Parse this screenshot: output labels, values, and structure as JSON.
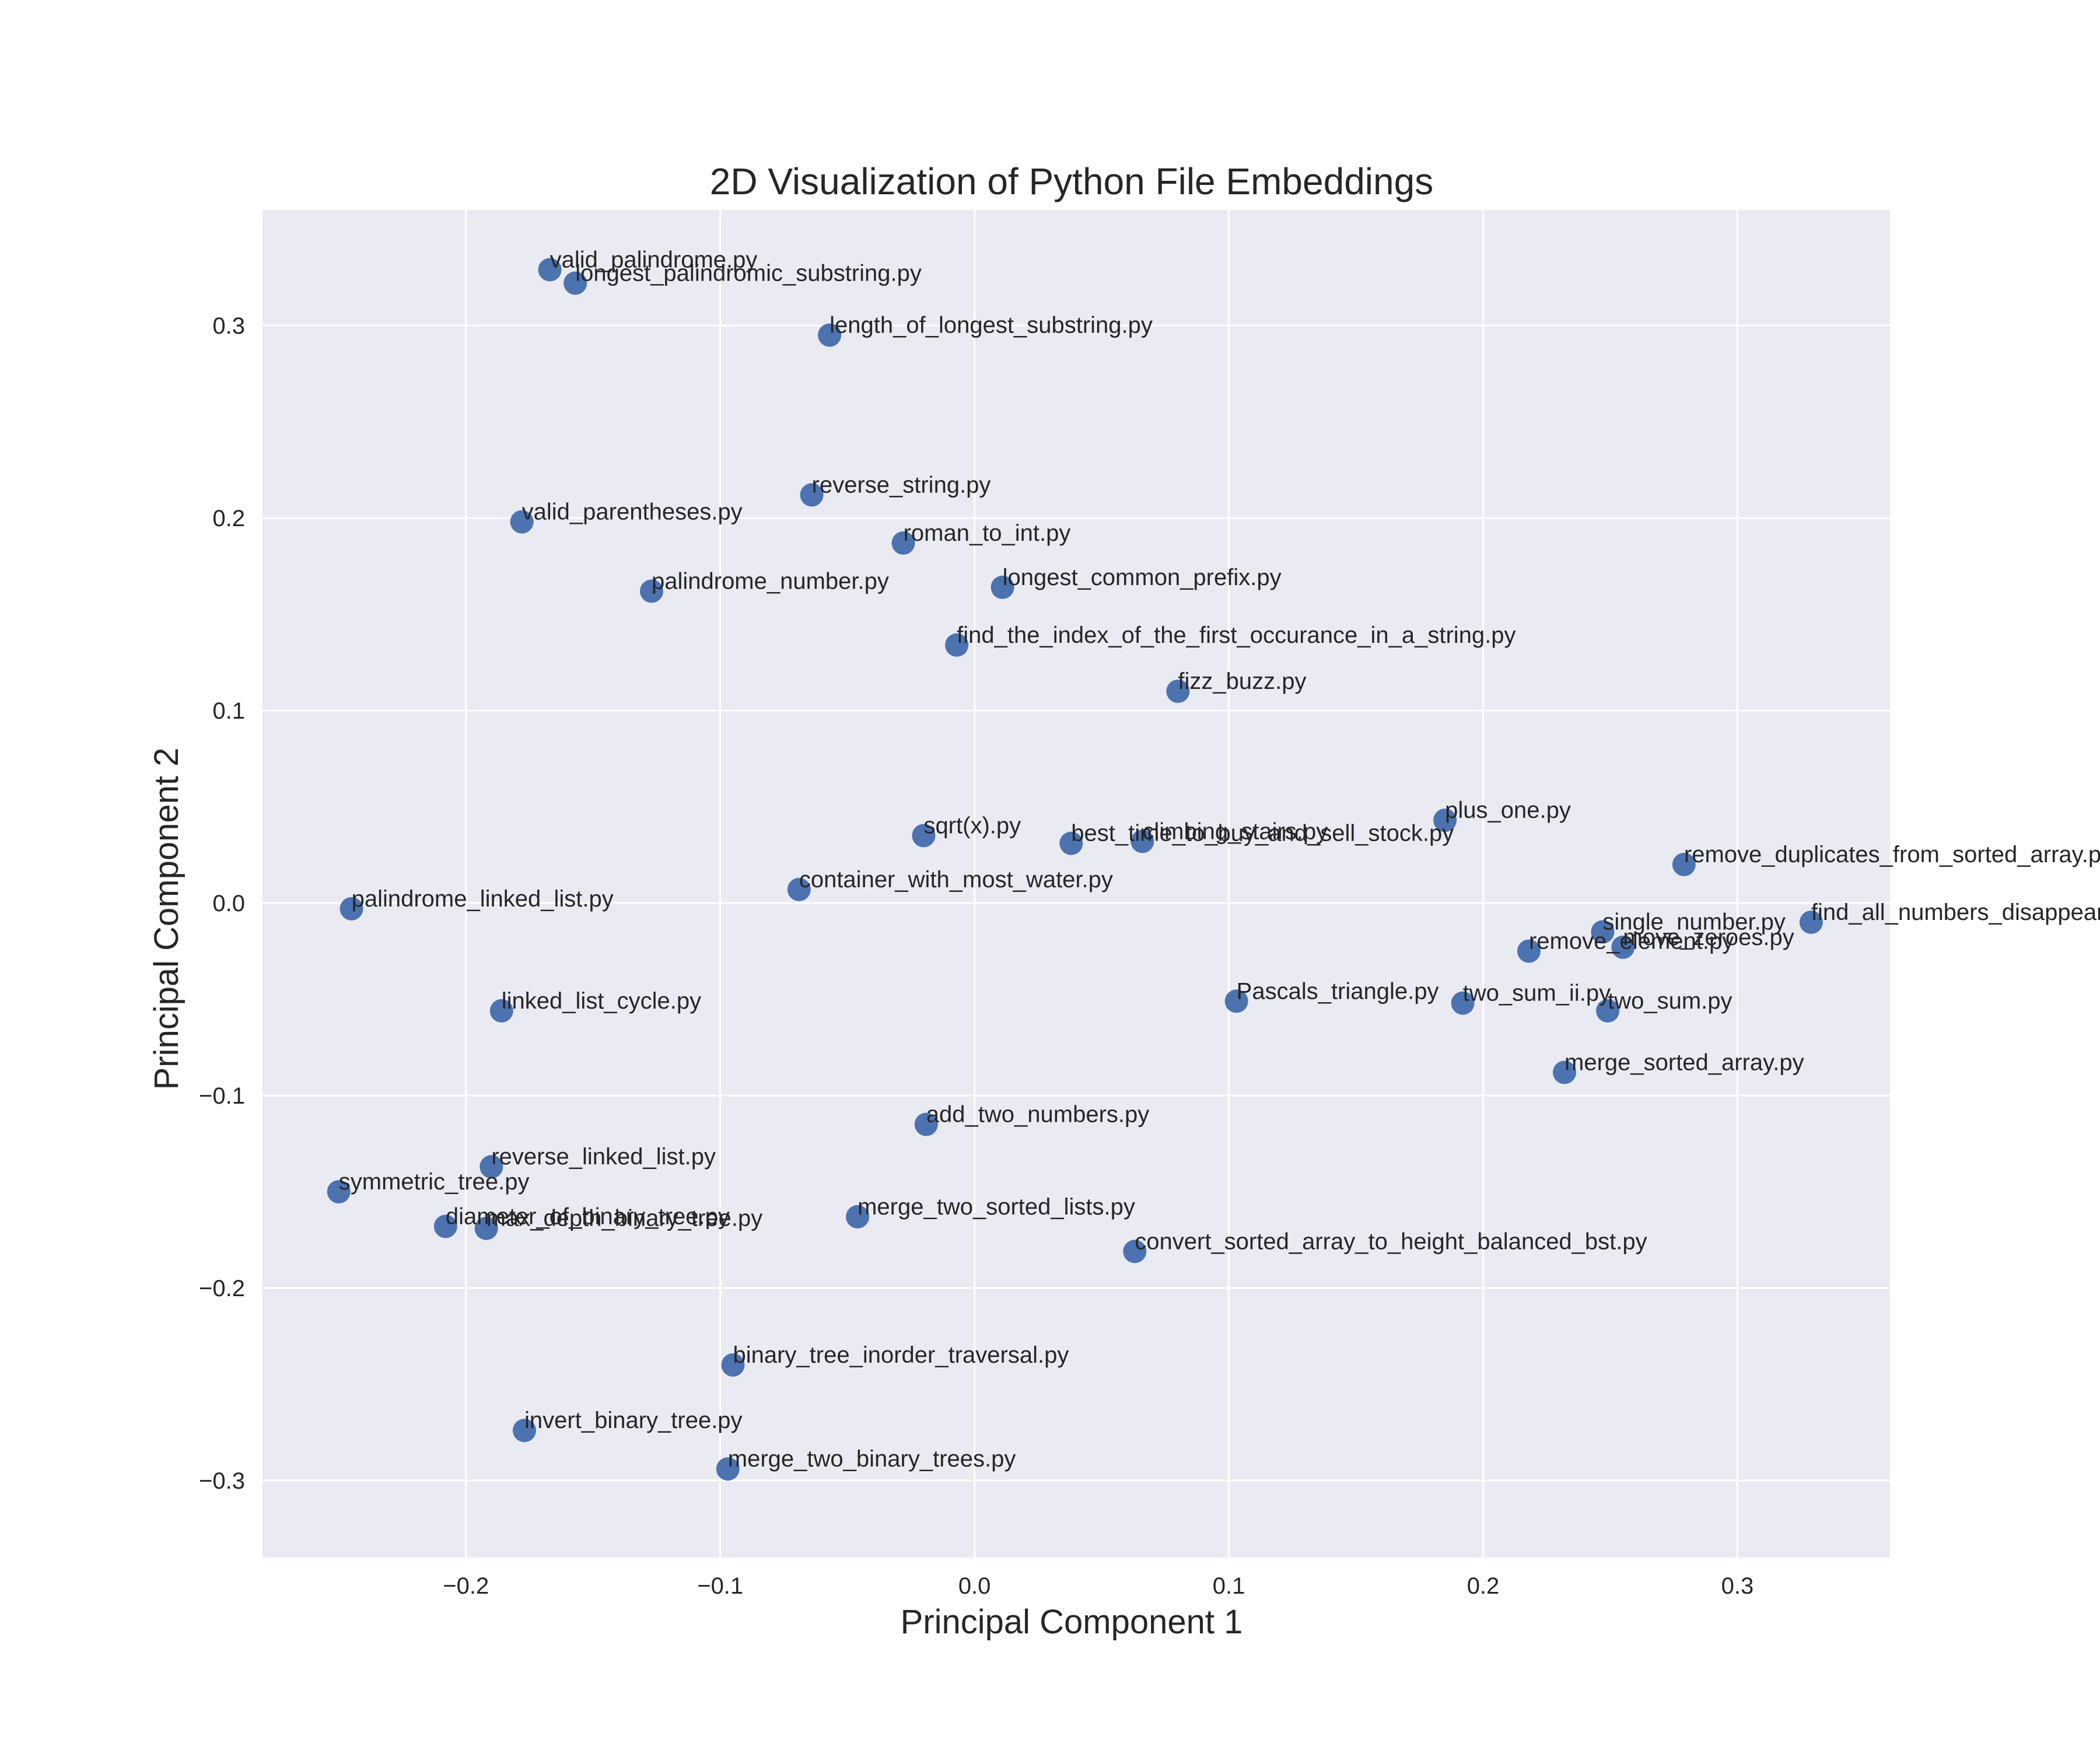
{
  "chart_data": {
    "type": "scatter",
    "title": "2D Visualization of Python File Embeddings",
    "xlabel": "Principal Component 1",
    "ylabel": "Principal Component 2",
    "xlim": [
      -0.28,
      0.36
    ],
    "ylim": [
      -0.34,
      0.36
    ],
    "xticks": [
      -0.2,
      -0.1,
      0.0,
      0.1,
      0.2,
      0.3
    ],
    "xtick_labels": [
      "−0.2",
      "−0.1",
      "0.0",
      "0.1",
      "0.2",
      "0.3"
    ],
    "yticks": [
      -0.3,
      -0.2,
      -0.1,
      0.0,
      0.1,
      0.2,
      0.3
    ],
    "ytick_labels": [
      "−0.3",
      "−0.2",
      "−0.1",
      "0.0",
      "0.1",
      "0.2",
      "0.3"
    ],
    "grid": true,
    "background_color": "#EAEAF2",
    "grid_color": "#FFFFFF",
    "marker_color": "#4C72B0",
    "points": [
      {
        "x": -0.167,
        "y": 0.329,
        "label": "valid_palindrome.py"
      },
      {
        "x": -0.157,
        "y": 0.322,
        "label": "longest_palindromic_substring.py"
      },
      {
        "x": -0.057,
        "y": 0.295,
        "label": "length_of_longest_substring.py"
      },
      {
        "x": -0.064,
        "y": 0.212,
        "label": "reverse_string.py"
      },
      {
        "x": -0.178,
        "y": 0.198,
        "label": "valid_parentheses.py"
      },
      {
        "x": -0.028,
        "y": 0.187,
        "label": "roman_to_int.py"
      },
      {
        "x": 0.011,
        "y": 0.164,
        "label": "longest_common_prefix.py"
      },
      {
        "x": -0.127,
        "y": 0.162,
        "label": "palindrome_number.py"
      },
      {
        "x": -0.007,
        "y": 0.134,
        "label": "find_the_index_of_the_first_occurance_in_a_string.py"
      },
      {
        "x": 0.08,
        "y": 0.11,
        "label": "fizz_buzz.py"
      },
      {
        "x": 0.185,
        "y": 0.043,
        "label": "plus_one.py"
      },
      {
        "x": -0.02,
        "y": 0.035,
        "label": "sqrt(x).py"
      },
      {
        "x": 0.038,
        "y": 0.031,
        "label": "best_time_to_buy_and_sell_stock.py"
      },
      {
        "x": 0.066,
        "y": 0.032,
        "label": "climbing_stairs.py"
      },
      {
        "x": 0.279,
        "y": 0.02,
        "label": "remove_duplicates_from_sorted_array.py"
      },
      {
        "x": -0.069,
        "y": 0.007,
        "label": "container_with_most_water.py"
      },
      {
        "x": -0.245,
        "y": -0.003,
        "label": "palindrome_linked_list.py"
      },
      {
        "x": 0.329,
        "y": -0.01,
        "label": "find_all_numbers_disappeared_in_an_array.py"
      },
      {
        "x": 0.247,
        "y": -0.015,
        "label": "single_number.py"
      },
      {
        "x": 0.255,
        "y": -0.023,
        "label": "move_zeroes.py"
      },
      {
        "x": 0.218,
        "y": -0.025,
        "label": "remove_element.py"
      },
      {
        "x": 0.103,
        "y": -0.051,
        "label": "Pascals_triangle.py"
      },
      {
        "x": 0.192,
        "y": -0.052,
        "label": "two_sum_ii.py"
      },
      {
        "x": 0.249,
        "y": -0.056,
        "label": "two_sum.py"
      },
      {
        "x": -0.186,
        "y": -0.056,
        "label": "linked_list_cycle.py"
      },
      {
        "x": 0.232,
        "y": -0.088,
        "label": "merge_sorted_array.py"
      },
      {
        "x": -0.019,
        "y": -0.115,
        "label": "add_two_numbers.py"
      },
      {
        "x": -0.19,
        "y": -0.137,
        "label": "reverse_linked_list.py"
      },
      {
        "x": -0.25,
        "y": -0.15,
        "label": "symmetric_tree.py"
      },
      {
        "x": -0.046,
        "y": -0.163,
        "label": "merge_two_sorted_lists.py"
      },
      {
        "x": -0.208,
        "y": -0.168,
        "label": "diameter_of_binary_tree.py"
      },
      {
        "x": -0.192,
        "y": -0.169,
        "label": "max_depth_binary_tree.py"
      },
      {
        "x": 0.063,
        "y": -0.181,
        "label": "convert_sorted_array_to_height_balanced_bst.py"
      },
      {
        "x": -0.095,
        "y": -0.24,
        "label": "binary_tree_inorder_traversal.py"
      },
      {
        "x": -0.177,
        "y": -0.274,
        "label": "invert_binary_tree.py"
      },
      {
        "x": -0.097,
        "y": -0.294,
        "label": "merge_two_binary_trees.py"
      }
    ]
  }
}
